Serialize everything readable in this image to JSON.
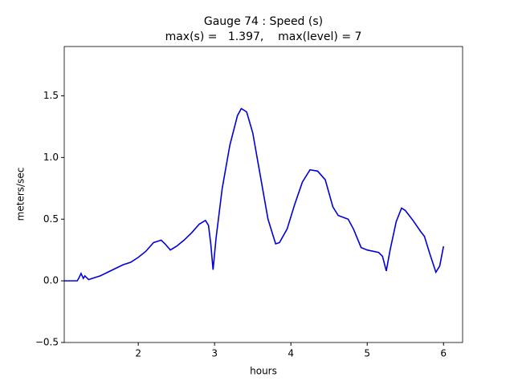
{
  "chart_data": {
    "type": "line",
    "title": [
      "Gauge 74 : Speed (s)",
      "max(s) =   1.397,    max(level) = 7"
    ],
    "x_label": "hours",
    "y_label": "meters/sec",
    "series": [
      {
        "color": "#0000dd",
        "x": [
          1.03,
          1.2,
          1.22,
          1.25,
          1.28,
          1.3,
          1.35,
          1.4,
          1.45,
          1.5,
          1.6,
          1.7,
          1.8,
          1.9,
          2.0,
          2.1,
          2.2,
          2.3,
          2.35,
          2.42,
          2.5,
          2.6,
          2.7,
          2.8,
          2.88,
          2.92,
          2.95,
          2.98,
          3.02,
          3.1,
          3.2,
          3.3,
          3.35,
          3.42,
          3.5,
          3.6,
          3.7,
          3.8,
          3.85,
          3.95,
          4.05,
          4.15,
          4.25,
          4.35,
          4.45,
          4.55,
          4.62,
          4.75,
          4.82,
          4.92,
          5.0,
          5.15,
          5.2,
          5.25,
          5.3,
          5.38,
          5.45,
          5.5,
          5.6,
          5.7,
          5.75,
          5.82,
          5.9,
          5.95,
          6.0
        ],
        "values": [
          0,
          0,
          0.02,
          0.06,
          0.02,
          0.04,
          0.01,
          0.02,
          0.03,
          0.04,
          0.07,
          0.1,
          0.13,
          0.15,
          0.19,
          0.24,
          0.31,
          0.33,
          0.3,
          0.25,
          0.28,
          0.33,
          0.39,
          0.46,
          0.49,
          0.45,
          0.3,
          0.09,
          0.35,
          0.75,
          1.1,
          1.34,
          1.397,
          1.37,
          1.2,
          0.85,
          0.5,
          0.3,
          0.31,
          0.42,
          0.62,
          0.8,
          0.9,
          0.89,
          0.82,
          0.6,
          0.53,
          0.5,
          0.42,
          0.27,
          0.25,
          0.23,
          0.2,
          0.08,
          0.25,
          0.48,
          0.59,
          0.57,
          0.49,
          0.4,
          0.36,
          0.22,
          0.07,
          0.12,
          0.28
        ]
      }
    ],
    "xlim": [
      1.03,
      6.25
    ],
    "ylim": [
      -0.5,
      1.9
    ],
    "xticks": [
      2,
      3,
      4,
      5,
      6
    ],
    "yticks": [
      {
        "value": -0.5,
        "label": "−0.5"
      },
      {
        "value": 0,
        "label": "0.0"
      },
      {
        "value": 0.5,
        "label": "0.5"
      },
      {
        "value": 1,
        "label": "1.0"
      },
      {
        "value": 1.5,
        "label": "1.5"
      }
    ]
  }
}
